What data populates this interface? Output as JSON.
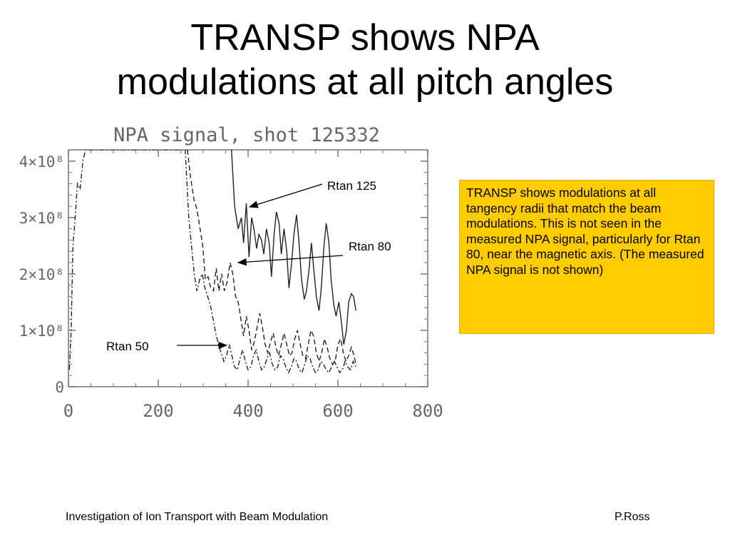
{
  "slide": {
    "title_line1": "TRANSP shows NPA",
    "title_line2": "modulations at all pitch angles",
    "note": "TRANSP shows modulations at all tangency radii that match the beam modulations.  This is not seen in the measured NPA signal, particularly for Rtan 80, near the magnetic axis. (The measured NPA signal is not shown)",
    "footer_left": "Investigation of Ion Transport with Beam Modulation",
    "footer_right": "P.Ross",
    "note_color": "#ffcc00"
  },
  "chart_data": {
    "type": "line",
    "title": "NPA signal, shot 125332",
    "xlabel": "",
    "ylabel": "",
    "xlim": [
      0,
      800
    ],
    "ylim": [
      0,
      420000000.0
    ],
    "x_ticks": [
      {
        "value": 0,
        "label": "0"
      },
      {
        "value": 200,
        "label": "200"
      },
      {
        "value": 400,
        "label": "400"
      },
      {
        "value": 600,
        "label": "600"
      },
      {
        "value": 800,
        "label": "800"
      }
    ],
    "y_ticks": [
      {
        "value": 0,
        "label": "0"
      },
      {
        "value": 100000000.0,
        "label": "1×10⁸"
      },
      {
        "value": 200000000.0,
        "label": "2×10⁸"
      },
      {
        "value": 300000000.0,
        "label": "3×10⁸"
      },
      {
        "value": 400000000.0,
        "label": "4×10⁸"
      }
    ],
    "grid": false,
    "series": [
      {
        "name": "Rtan 125",
        "style": "solid",
        "points": [
          [
            363,
            420000000.0
          ],
          [
            370,
            320000000.0
          ],
          [
            378,
            280000000.0
          ],
          [
            385,
            300000000.0
          ],
          [
            390,
            255000000.0
          ],
          [
            396,
            325000000.0
          ],
          [
            402,
            230000000.0
          ],
          [
            408,
            300000000.0
          ],
          [
            413,
            280000000.0
          ],
          [
            419,
            245000000.0
          ],
          [
            424,
            270000000.0
          ],
          [
            430,
            260000000.0
          ],
          [
            435,
            235000000.0
          ],
          [
            441,
            280000000.0
          ],
          [
            447,
            255000000.0
          ],
          [
            452,
            195000000.0
          ],
          [
            458,
            270000000.0
          ],
          [
            463,
            310000000.0
          ],
          [
            469,
            290000000.0
          ],
          [
            474,
            235000000.0
          ],
          [
            480,
            280000000.0
          ],
          [
            486,
            240000000.0
          ],
          [
            491,
            175000000.0
          ],
          [
            497,
            220000000.0
          ],
          [
            502,
            270000000.0
          ],
          [
            508,
            305000000.0
          ],
          [
            513,
            260000000.0
          ],
          [
            519,
            190000000.0
          ],
          [
            525,
            155000000.0
          ],
          [
            530,
            170000000.0
          ],
          [
            536,
            210000000.0
          ],
          [
            541,
            255000000.0
          ],
          [
            546,
            210000000.0
          ],
          [
            552,
            160000000.0
          ],
          [
            558,
            135000000.0
          ],
          [
            563,
            175000000.0
          ],
          [
            569,
            250000000.0
          ],
          [
            574,
            290000000.0
          ],
          [
            580,
            255000000.0
          ],
          [
            585,
            190000000.0
          ],
          [
            591,
            145000000.0
          ],
          [
            596,
            125000000.0
          ],
          [
            602,
            150000000.0
          ],
          [
            607,
            120000000.0
          ],
          [
            613,
            75000000.0
          ],
          [
            619,
            100000000.0
          ],
          [
            624,
            150000000.0
          ],
          [
            630,
            165000000.0
          ],
          [
            635,
            160000000.0
          ],
          [
            640,
            135000000.0
          ]
        ]
      },
      {
        "name": "Rtan 80",
        "style": "dashed",
        "points": [
          [
            265,
            420000000.0
          ],
          [
            272,
            370000000.0
          ],
          [
            280,
            330000000.0
          ],
          [
            286,
            315000000.0
          ],
          [
            292,
            285000000.0
          ],
          [
            299,
            250000000.0
          ],
          [
            305,
            190000000.0
          ],
          [
            311,
            195000000.0
          ],
          [
            317,
            175000000.0
          ],
          [
            323,
            170000000.0
          ],
          [
            329,
            210000000.0
          ],
          [
            335,
            170000000.0
          ],
          [
            341,
            200000000.0
          ],
          [
            347,
            170000000.0
          ],
          [
            353,
            185000000.0
          ],
          [
            360,
            220000000.0
          ],
          [
            366,
            200000000.0
          ],
          [
            372,
            160000000.0
          ],
          [
            378,
            150000000.0
          ],
          [
            384,
            120000000.0
          ],
          [
            390,
            90000000.0
          ],
          [
            396,
            125000000.0
          ],
          [
            402,
            100000000.0
          ],
          [
            408,
            65000000.0
          ],
          [
            414,
            80000000.0
          ],
          [
            420,
            105000000.0
          ],
          [
            426,
            130000000.0
          ],
          [
            432,
            105000000.0
          ],
          [
            438,
            75000000.0
          ],
          [
            444,
            60000000.0
          ],
          [
            450,
            80000000.0
          ],
          [
            456,
            95000000.0
          ],
          [
            462,
            70000000.0
          ],
          [
            468,
            55000000.0
          ],
          [
            474,
            75000000.0
          ],
          [
            480,
            95000000.0
          ],
          [
            486,
            75000000.0
          ],
          [
            492,
            55000000.0
          ],
          [
            498,
            60000000.0
          ],
          [
            504,
            85000000.0
          ],
          [
            510,
            100000000.0
          ],
          [
            516,
            75000000.0
          ],
          [
            522,
            55000000.0
          ],
          [
            528,
            50000000.0
          ],
          [
            534,
            75000000.0
          ],
          [
            540,
            100000000.0
          ],
          [
            546,
            90000000.0
          ],
          [
            552,
            60000000.0
          ],
          [
            558,
            45000000.0
          ],
          [
            564,
            60000000.0
          ],
          [
            570,
            85000000.0
          ],
          [
            576,
            70000000.0
          ],
          [
            582,
            50000000.0
          ],
          [
            588,
            40000000.0
          ],
          [
            594,
            45000000.0
          ],
          [
            600,
            75000000.0
          ],
          [
            606,
            85000000.0
          ],
          [
            612,
            60000000.0
          ],
          [
            618,
            45000000.0
          ],
          [
            624,
            55000000.0
          ],
          [
            630,
            70000000.0
          ],
          [
            636,
            55000000.0
          ],
          [
            640,
            40000000.0
          ]
        ]
      },
      {
        "name": "Rtan 50",
        "style": "dash-dot",
        "points": [
          [
            2,
            30000000.0
          ],
          [
            6,
            100000000.0
          ],
          [
            10,
            250000000.0
          ],
          [
            15,
            300000000.0
          ],
          [
            20,
            360000000.0
          ],
          [
            26,
            350000000.0
          ],
          [
            32,
            400000000.0
          ],
          [
            38,
            420000000.0
          ],
          [
            260,
            420000000.0
          ],
          [
            268,
            300000000.0
          ],
          [
            274,
            250000000.0
          ],
          [
            280,
            200000000.0
          ],
          [
            286,
            170000000.0
          ],
          [
            292,
            190000000.0
          ],
          [
            298,
            200000000.0
          ],
          [
            304,
            175000000.0
          ],
          [
            310,
            160000000.0
          ],
          [
            316,
            145000000.0
          ],
          [
            322,
            120000000.0
          ],
          [
            328,
            95000000.0
          ],
          [
            334,
            75000000.0
          ],
          [
            340,
            60000000.0
          ],
          [
            346,
            45000000.0
          ],
          [
            352,
            55000000.0
          ],
          [
            358,
            75000000.0
          ],
          [
            364,
            55000000.0
          ],
          [
            370,
            35000000.0
          ],
          [
            376,
            30000000.0
          ],
          [
            382,
            50000000.0
          ],
          [
            388,
            65000000.0
          ],
          [
            394,
            45000000.0
          ],
          [
            400,
            30000000.0
          ],
          [
            406,
            35000000.0
          ],
          [
            412,
            55000000.0
          ],
          [
            418,
            65000000.0
          ],
          [
            424,
            45000000.0
          ],
          [
            430,
            30000000.0
          ],
          [
            436,
            35000000.0
          ],
          [
            442,
            50000000.0
          ],
          [
            448,
            60000000.0
          ],
          [
            454,
            40000000.0
          ],
          [
            460,
            30000000.0
          ],
          [
            466,
            35000000.0
          ],
          [
            472,
            55000000.0
          ],
          [
            478,
            50000000.0
          ],
          [
            484,
            35000000.0
          ],
          [
            490,
            25000000.0
          ],
          [
            496,
            35000000.0
          ],
          [
            502,
            50000000.0
          ],
          [
            508,
            45000000.0
          ],
          [
            514,
            30000000.0
          ],
          [
            520,
            25000000.0
          ],
          [
            526,
            40000000.0
          ],
          [
            532,
            55000000.0
          ],
          [
            538,
            50000000.0
          ],
          [
            544,
            35000000.0
          ],
          [
            550,
            25000000.0
          ],
          [
            556,
            30000000.0
          ],
          [
            562,
            45000000.0
          ],
          [
            568,
            40000000.0
          ],
          [
            574,
            30000000.0
          ],
          [
            580,
            25000000.0
          ],
          [
            586,
            35000000.0
          ],
          [
            592,
            45000000.0
          ],
          [
            598,
            35000000.0
          ],
          [
            604,
            25000000.0
          ],
          [
            610,
            30000000.0
          ],
          [
            616,
            45000000.0
          ],
          [
            622,
            35000000.0
          ],
          [
            628,
            30000000.0
          ],
          [
            634,
            45000000.0
          ],
          [
            640,
            35000000.0
          ]
        ]
      }
    ],
    "annotations": [
      {
        "label": "Rtan 125",
        "target": "Rtan 125"
      },
      {
        "label": "Rtan 80",
        "target": "Rtan 80"
      },
      {
        "label": "Rtan 50",
        "target": "Rtan 50"
      }
    ]
  }
}
